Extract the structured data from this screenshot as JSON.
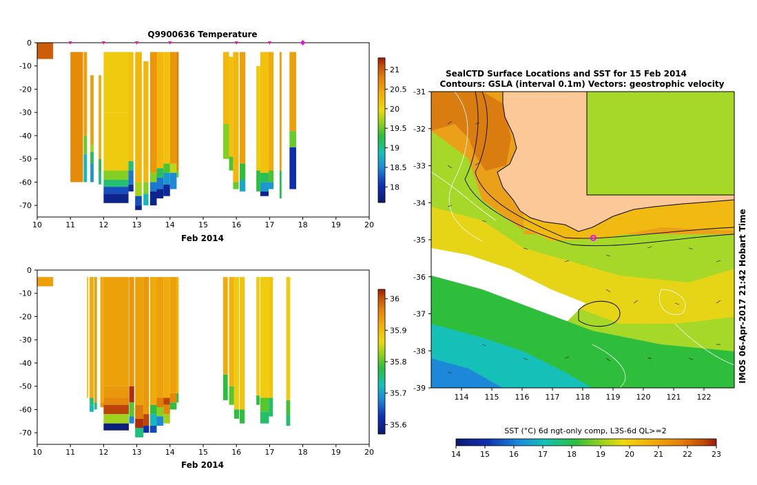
{
  "chart_data": [
    {
      "type": "heatmap",
      "title": "Q9900636  Temperature",
      "xlabel": "Feb 2014",
      "ylabel": "",
      "xlim": [
        10,
        20
      ],
      "ylim": [
        -75,
        0
      ],
      "x_ticks": [
        "10",
        "11",
        "12",
        "13",
        "14",
        "15",
        "16",
        "17",
        "18",
        "19",
        "20"
      ],
      "y_ticks": [
        "0",
        "-10",
        "-20",
        "-30",
        "-40",
        "-50",
        "-60",
        "-70"
      ],
      "colorbar": {
        "min": 17.6,
        "max": 21.3,
        "ticks": [
          "18",
          "18.5",
          "19",
          "19.5",
          "20",
          "20.5",
          "21"
        ]
      },
      "day_markers": [
        11,
        12,
        13,
        14,
        16,
        17,
        18
      ],
      "highlight_marker": 18,
      "profiles": [
        {
          "x": 10.0,
          "w": 0.48,
          "values": [
            [
              0,
              4,
              21.0
            ],
            [
              4,
              7,
              21.0
            ]
          ]
        },
        {
          "x": 11.0,
          "w": 0.38,
          "values": [
            [
              4,
              60,
              20.7
            ]
          ]
        },
        {
          "x": 11.4,
          "w": 0.1,
          "values": [
            [
              4,
              40,
              20.5
            ],
            [
              40,
              48,
              19.5
            ],
            [
              48,
              60,
              18.8
            ]
          ]
        },
        {
          "x": 11.6,
          "w": 0.1,
          "values": [
            [
              14,
              44,
              20.5
            ],
            [
              44,
              47,
              19.7
            ],
            [
              47,
              52,
              19.2
            ],
            [
              52,
              60,
              18.6
            ]
          ]
        },
        {
          "x": 11.85,
          "w": 0.08,
          "values": [
            [
              14,
              50,
              20.4
            ],
            [
              50,
              56,
              19.3
            ],
            [
              56,
              61,
              19.0
            ]
          ]
        },
        {
          "x": 12.0,
          "w": 0.75,
          "values": [
            [
              4,
              30,
              20.1
            ],
            [
              30,
              55,
              20.1
            ],
            [
              55,
              59,
              19.6
            ],
            [
              59,
              62,
              19.1
            ],
            [
              62,
              65,
              18.2
            ],
            [
              65,
              69,
              17.8
            ]
          ]
        },
        {
          "x": 12.75,
          "w": 0.15,
          "values": [
            [
              4,
              51,
              20.2
            ],
            [
              51,
              55,
              19.1
            ],
            [
              55,
              61,
              18.4
            ],
            [
              61,
              64,
              17.9
            ]
          ]
        },
        {
          "x": 12.95,
          "w": 0.2,
          "values": [
            [
              4,
              60,
              20.3
            ],
            [
              60,
              66,
              19.7
            ],
            [
              66,
              70,
              18.2
            ],
            [
              70,
              72,
              17.8
            ]
          ]
        },
        {
          "x": 13.2,
          "w": 0.15,
          "values": [
            [
              8,
              60,
              20.3
            ],
            [
              60,
              65,
              19.6
            ],
            [
              65,
              70,
              18.8
            ]
          ]
        },
        {
          "x": 13.4,
          "w": 0.2,
          "values": [
            [
              4,
              56,
              20.6
            ],
            [
              56,
              60,
              19.6
            ],
            [
              60,
              64,
              18.4
            ],
            [
              64,
              70,
              17.8
            ]
          ]
        },
        {
          "x": 13.6,
          "w": 0.2,
          "values": [
            [
              4,
              54,
              20.3
            ],
            [
              54,
              58,
              19.2
            ],
            [
              58,
              63,
              18.4
            ],
            [
              63,
              67,
              17.8
            ]
          ]
        },
        {
          "x": 13.8,
          "w": 0.2,
          "values": [
            [
              4,
              52,
              20.2
            ],
            [
              52,
              56,
              19.4
            ],
            [
              56,
              61,
              18.6
            ],
            [
              61,
              66,
              17.9
            ]
          ]
        },
        {
          "x": 14.0,
          "w": 0.2,
          "values": [
            [
              4,
              52,
              20.6
            ],
            [
              52,
              56,
              19.8
            ],
            [
              56,
              63,
              18.5
            ]
          ]
        },
        {
          "x": 14.2,
          "w": 0.06,
          "values": [
            [
              4,
              55,
              20.8
            ],
            [
              55,
              58,
              19.5
            ]
          ]
        },
        {
          "x": 15.6,
          "w": 0.18,
          "values": [
            [
              4,
              35,
              20.3
            ],
            [
              35,
              50,
              19.6
            ]
          ]
        },
        {
          "x": 15.78,
          "w": 0.12,
          "values": [
            [
              6,
              49,
              20.2
            ],
            [
              49,
              55,
              19.4
            ]
          ]
        },
        {
          "x": 15.9,
          "w": 0.17,
          "values": [
            [
              4,
              60,
              20.3
            ],
            [
              60,
              63,
              19.5
            ]
          ]
        },
        {
          "x": 16.1,
          "w": 0.17,
          "values": [
            [
              4,
              52,
              20.5
            ],
            [
              52,
              59,
              19.3
            ],
            [
              59,
              64,
              18.7
            ]
          ]
        },
        {
          "x": 16.6,
          "w": 0.12,
          "values": [
            [
              10,
              55,
              20.1
            ],
            [
              55,
              64,
              19.3
            ]
          ]
        },
        {
          "x": 16.72,
          "w": 0.25,
          "values": [
            [
              4,
              56,
              20.2
            ],
            [
              56,
              60,
              19.2
            ],
            [
              60,
              64,
              18.6
            ],
            [
              64,
              66,
              17.8
            ]
          ]
        },
        {
          "x": 16.97,
          "w": 0.15,
          "values": [
            [
              4,
              55,
              20.4
            ],
            [
              55,
              60,
              19.4
            ],
            [
              60,
              63,
              18.6
            ]
          ]
        },
        {
          "x": 17.3,
          "w": 0.06,
          "values": [
            [
              4,
              55,
              20.5
            ],
            [
              55,
              67,
              19.2
            ]
          ]
        },
        {
          "x": 17.6,
          "w": 0.2,
          "values": [
            [
              4,
              38,
              20.5
            ],
            [
              38,
              45,
              19.5
            ],
            [
              45,
              63,
              18.0
            ]
          ]
        }
      ]
    },
    {
      "type": "heatmap",
      "title": "",
      "xlabel": "Feb 2014",
      "ylabel": "",
      "xlim": [
        10,
        20
      ],
      "ylim": [
        -75,
        0
      ],
      "x_ticks": [
        "10",
        "11",
        "12",
        "13",
        "14",
        "15",
        "16",
        "17",
        "18",
        "19",
        "20"
      ],
      "y_ticks": [
        "0",
        "-10",
        "-20",
        "-30",
        "-40",
        "-50",
        "-60",
        "-70"
      ],
      "colorbar": {
        "min": 35.57,
        "max": 36.03,
        "ticks": [
          "35.6",
          "35.7",
          "35.8",
          "35.9",
          "36"
        ]
      },
      "profiles": [
        {
          "x": 10.0,
          "w": 0.48,
          "values": [
            [
              3,
              7,
              35.93
            ]
          ]
        },
        {
          "x": 11.5,
          "w": 0.04,
          "values": [
            [
              3,
              55,
              35.9
            ]
          ]
        },
        {
          "x": 11.58,
          "w": 0.12,
          "values": [
            [
              3,
              55,
              35.92
            ],
            [
              55,
              58,
              35.76
            ],
            [
              58,
              61,
              35.72
            ]
          ]
        },
        {
          "x": 11.72,
          "w": 0.08,
          "values": [
            [
              3,
              57,
              35.93
            ],
            [
              57,
              60,
              35.75
            ]
          ]
        },
        {
          "x": 11.9,
          "w": 0.1,
          "values": [
            [
              3,
              57,
              35.92
            ],
            [
              57,
              59,
              35.94
            ]
          ]
        },
        {
          "x": 12.0,
          "w": 0.76,
          "values": [
            [
              3,
              50,
              35.93
            ],
            [
              50,
              55,
              35.94
            ],
            [
              55,
              58,
              35.96
            ],
            [
              58,
              62,
              36.01
            ],
            [
              62,
              66,
              35.83
            ],
            [
              66,
              69,
              35.58
            ]
          ]
        },
        {
          "x": 12.77,
          "w": 0.15,
          "values": [
            [
              3,
              50,
              35.94
            ],
            [
              50,
              57,
              36.02
            ],
            [
              57,
              63,
              35.8
            ],
            [
              63,
              66,
              35.68
            ]
          ]
        },
        {
          "x": 12.95,
          "w": 0.25,
          "values": [
            [
              3,
              58,
              35.93
            ],
            [
              58,
              64,
              35.97
            ],
            [
              64,
              68,
              36.02
            ],
            [
              68,
              72,
              35.75
            ]
          ]
        },
        {
          "x": 13.2,
          "w": 0.17,
          "values": [
            [
              3,
              62,
              35.94
            ],
            [
              62,
              67,
              36.01
            ],
            [
              67,
              70,
              35.62
            ]
          ]
        },
        {
          "x": 13.4,
          "w": 0.2,
          "values": [
            [
              3,
              58,
              35.92
            ],
            [
              58,
              62,
              35.78
            ],
            [
              62,
              67,
              35.72
            ],
            [
              67,
              70,
              35.64
            ]
          ]
        },
        {
          "x": 13.6,
          "w": 0.2,
          "values": [
            [
              3,
              55,
              35.93
            ],
            [
              55,
              59,
              35.97
            ],
            [
              59,
              63,
              35.82
            ],
            [
              63,
              67,
              35.68
            ]
          ]
        },
        {
          "x": 13.8,
          "w": 0.2,
          "values": [
            [
              3,
              55,
              35.92
            ],
            [
              55,
              58,
              36.01
            ],
            [
              58,
              62,
              35.96
            ],
            [
              62,
              66,
              35.83
            ]
          ]
        },
        {
          "x": 14.0,
          "w": 0.2,
          "values": [
            [
              3,
              53,
              35.93
            ],
            [
              53,
              57,
              35.96
            ],
            [
              57,
              60,
              35.78
            ]
          ]
        },
        {
          "x": 14.2,
          "w": 0.06,
          "values": [
            [
              3,
              53,
              35.91
            ],
            [
              53,
              57,
              35.78
            ]
          ]
        },
        {
          "x": 15.6,
          "w": 0.14,
          "values": [
            [
              3,
              45,
              35.92
            ],
            [
              45,
              56,
              35.78
            ]
          ]
        },
        {
          "x": 15.78,
          "w": 0.15,
          "values": [
            [
              3,
              50,
              35.91
            ],
            [
              50,
              58,
              35.8
            ]
          ]
        },
        {
          "x": 15.93,
          "w": 0.15,
          "values": [
            [
              3,
              60,
              35.88
            ],
            [
              60,
              64,
              35.78
            ]
          ]
        },
        {
          "x": 16.1,
          "w": 0.15,
          "values": [
            [
              3,
              60,
              35.89
            ],
            [
              60,
              66,
              35.78
            ]
          ]
        },
        {
          "x": 16.6,
          "w": 0.1,
          "values": [
            [
              3,
              54,
              35.88
            ],
            [
              54,
              58,
              35.78
            ]
          ]
        },
        {
          "x": 16.72,
          "w": 0.26,
          "values": [
            [
              3,
              55,
              35.88
            ],
            [
              55,
              61,
              35.8
            ],
            [
              61,
              66,
              35.76
            ]
          ]
        },
        {
          "x": 16.98,
          "w": 0.12,
          "values": [
            [
              3,
              55,
              35.89
            ],
            [
              55,
              63,
              35.76
            ]
          ]
        },
        {
          "x": 17.5,
          "w": 0.12,
          "values": [
            [
              3,
              56,
              35.88
            ],
            [
              56,
              62,
              35.79
            ],
            [
              62,
              67,
              35.76
            ]
          ]
        }
      ]
    },
    {
      "type": "heatmap",
      "title": "SealCTD Surface Locations and SST for 15 Feb 2014",
      "subtitle": "Contours: GSLA (interval 0.1m) Vectors: geostrophic velocity",
      "xlabel": "",
      "ylabel": "",
      "xlim": [
        113,
        123
      ],
      "ylim": [
        -39,
        -31
      ],
      "x_ticks": [
        "114",
        "115",
        "116",
        "117",
        "118",
        "119",
        "120",
        "121",
        "122"
      ],
      "y_ticks": [
        "-31",
        "-32",
        "-33",
        "-34",
        "-35",
        "-36",
        "-37",
        "-38",
        "-39"
      ],
      "colorbar": {
        "label": "SST (°C) 6d ngt-only comp, L3S-6d QL>=2",
        "min": 14,
        "max": 23,
        "ticks": [
          "14",
          "15",
          "16",
          "17",
          "18",
          "19",
          "20",
          "21",
          "22",
          "23"
        ]
      },
      "seal_location": {
        "lon": 118.35,
        "lat": -34.95
      },
      "stamp": "IMOS 06-Apr-2017 21:42 Hobart Time"
    }
  ]
}
